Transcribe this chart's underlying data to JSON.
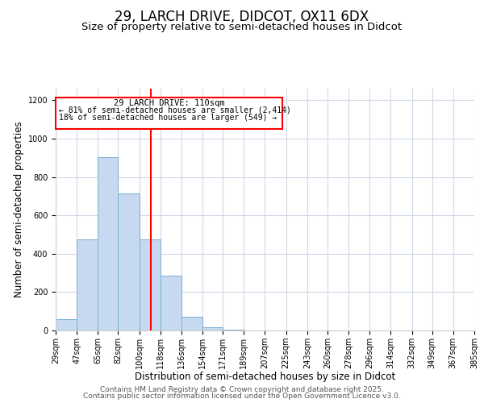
{
  "title": "29, LARCH DRIVE, DIDCOT, OX11 6DX",
  "subtitle": "Size of property relative to semi-detached houses in Didcot",
  "xlabel": "Distribution of semi-detached houses by size in Didcot",
  "ylabel": "Number of semi-detached properties",
  "bar_color": "#c6d9f0",
  "bar_edge_color": "#7bafd4",
  "background_color": "#ffffff",
  "grid_color": "#d0d8e8",
  "vline_x": 110,
  "vline_color": "red",
  "property_label": "29 LARCH DRIVE: 110sqm",
  "pct_smaller": 81,
  "count_smaller": 2414,
  "pct_larger": 18,
  "count_larger": 549,
  "bin_edges": [
    29,
    47,
    65,
    82,
    100,
    118,
    136,
    154,
    171,
    189,
    207,
    225,
    243,
    260,
    278,
    296,
    314,
    332,
    349,
    367,
    385
  ],
  "bin_heights": [
    60,
    475,
    905,
    715,
    475,
    285,
    70,
    15,
    5,
    0,
    0,
    0,
    0,
    0,
    0,
    0,
    0,
    0,
    0,
    0
  ],
  "ylim": [
    0,
    1260
  ],
  "yticks": [
    0,
    200,
    400,
    600,
    800,
    1000,
    1200
  ],
  "footer_line1": "Contains HM Land Registry data © Crown copyright and database right 2025.",
  "footer_line2": "Contains public sector information licensed under the Open Government Licence v3.0.",
  "title_fontsize": 12,
  "subtitle_fontsize": 9.5,
  "tick_label_fontsize": 7,
  "axis_label_fontsize": 8.5,
  "footer_fontsize": 6.5
}
